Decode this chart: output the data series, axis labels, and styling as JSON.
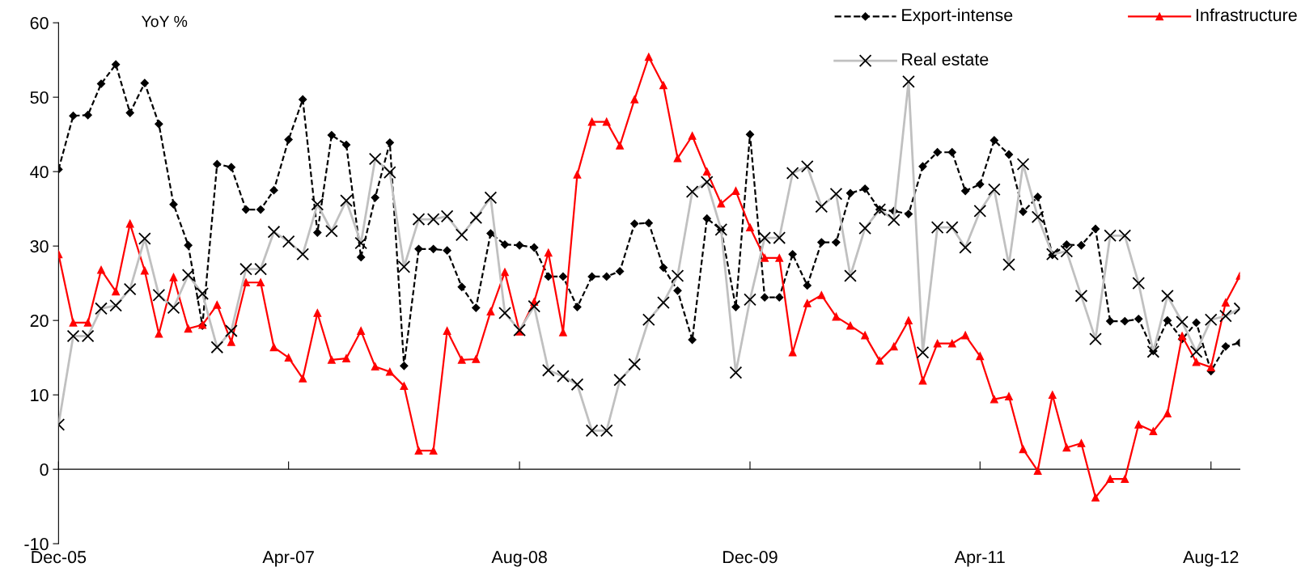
{
  "chart_data": {
    "type": "line",
    "ylabel": "YoY %",
    "x": [
      "2005-12",
      "2006-01",
      "2006-02",
      "2006-03",
      "2006-04",
      "2006-05",
      "2006-06",
      "2006-07",
      "2006-08",
      "2006-09",
      "2006-10",
      "2006-11",
      "2006-12",
      "2007-01",
      "2007-02",
      "2007-03",
      "2007-04",
      "2007-05",
      "2007-06",
      "2007-07",
      "2007-08",
      "2007-09",
      "2007-10",
      "2007-11",
      "2007-12",
      "2008-01",
      "2008-02",
      "2008-03",
      "2008-04",
      "2008-05",
      "2008-06",
      "2008-07",
      "2008-08",
      "2008-09",
      "2008-10",
      "2008-11",
      "2008-12",
      "2009-01",
      "2009-02",
      "2009-03",
      "2009-04",
      "2009-05",
      "2009-06",
      "2009-07",
      "2009-08",
      "2009-09",
      "2009-10",
      "2009-11",
      "2009-12",
      "2010-01",
      "2010-02",
      "2010-03",
      "2010-04",
      "2010-05",
      "2010-06",
      "2010-07",
      "2010-08",
      "2010-09",
      "2010-10",
      "2010-11",
      "2010-12",
      "2011-01",
      "2011-02",
      "2011-03",
      "2011-04",
      "2011-05",
      "2011-06",
      "2011-07",
      "2011-08",
      "2011-09",
      "2011-10",
      "2011-11",
      "2011-12",
      "2012-01",
      "2012-02",
      "2012-03",
      "2012-04",
      "2012-05",
      "2012-06",
      "2012-07",
      "2012-08",
      "2012-09",
      "2012-10"
    ],
    "series": [
      {
        "name": "Export-intense",
        "color": "#000000",
        "marker": "diamond",
        "line_style": "dashed",
        "values": [
          40.3,
          47.5,
          47.6,
          51.8,
          54.4,
          47.9,
          51.9,
          46.4,
          35.6,
          30.1,
          19.3,
          41.0,
          40.6,
          34.9,
          34.9,
          37.5,
          44.3,
          49.7,
          31.8,
          44.9,
          43.6,
          28.5,
          36.5,
          43.9,
          13.9,
          29.6,
          29.6,
          29.4,
          24.5,
          21.7,
          31.7,
          30.2,
          30.1,
          29.8,
          25.9,
          25.9,
          21.8,
          25.9,
          25.9,
          26.6,
          33.0,
          33.1,
          27.1,
          24.0,
          17.4,
          33.7,
          32.2,
          21.8,
          45.0,
          23.1,
          23.1,
          28.9,
          24.7,
          30.5,
          30.5,
          37.1,
          37.7,
          34.9,
          34.7,
          34.3,
          40.7,
          42.6,
          42.6,
          37.4,
          38.3,
          44.2,
          42.3,
          34.6,
          36.6,
          28.8,
          30.2,
          30.1,
          32.3,
          19.9,
          19.9,
          20.2,
          15.9,
          20.0,
          17.5,
          19.7,
          13.2,
          16.5,
          17.0
        ]
      },
      {
        "name": "Infrastructure",
        "color": "#ff0000",
        "marker": "triangle",
        "line_style": "solid",
        "values": [
          28.9,
          19.7,
          19.7,
          26.8,
          23.9,
          33.0,
          26.7,
          18.2,
          25.8,
          18.9,
          19.4,
          22.1,
          17.1,
          25.1,
          25.1,
          16.4,
          15.0,
          12.2,
          21.0,
          14.7,
          14.9,
          18.6,
          13.8,
          13.1,
          11.2,
          2.5,
          2.5,
          18.6,
          14.7,
          14.8,
          21.2,
          26.5,
          18.5,
          22.5,
          29.1,
          18.4,
          39.6,
          46.7,
          46.7,
          43.5,
          49.7,
          55.4,
          51.6,
          41.8,
          44.8,
          40.0,
          35.7,
          37.4,
          32.5,
          28.4,
          28.4,
          15.7,
          22.3,
          23.4,
          20.5,
          19.3,
          18.0,
          14.6,
          16.5,
          20.0,
          11.9,
          16.9,
          16.9,
          18.0,
          15.2,
          9.4,
          9.8,
          2.7,
          -0.2,
          10.0,
          2.9,
          3.5,
          -3.8,
          -1.3,
          -1.3,
          6.0,
          5.1,
          7.5,
          17.9,
          14.4,
          13.7,
          22.4,
          26.0
        ]
      },
      {
        "name": "Real estate",
        "color": "#c0c0c0",
        "marker": "cross",
        "line_style": "solid",
        "values": [
          6.0,
          17.9,
          17.9,
          21.6,
          22.0,
          24.2,
          31.0,
          23.4,
          21.7,
          26.1,
          23.6,
          16.4,
          18.6,
          26.9,
          26.9,
          31.9,
          30.6,
          28.9,
          35.6,
          32.0,
          36.1,
          30.4,
          41.7,
          39.9,
          27.2,
          33.6,
          33.6,
          34.0,
          31.5,
          33.8,
          36.5,
          21.0,
          18.7,
          21.9,
          13.3,
          12.5,
          11.4,
          5.2,
          5.2,
          12.0,
          14.1,
          20.1,
          22.4,
          26.0,
          37.3,
          38.6,
          32.2,
          13.0,
          22.8,
          31.1,
          31.1,
          39.8,
          40.7,
          35.3,
          37.0,
          26.0,
          32.4,
          34.9,
          33.5,
          52.1,
          15.7,
          32.5,
          32.5,
          29.8,
          34.7,
          37.6,
          27.5,
          41.0,
          33.9,
          28.9,
          29.3,
          23.3,
          17.5,
          31.4,
          31.4,
          25.0,
          15.8,
          23.3,
          19.8,
          15.8,
          20.1,
          20.6,
          21.6
        ]
      }
    ],
    "xlim": [
      "2005-12",
      "2012-10"
    ],
    "xticks": [
      {
        "value": "2005-12",
        "label": "Dec-05"
      },
      {
        "value": "2007-04",
        "label": "Apr-07"
      },
      {
        "value": "2008-08",
        "label": "Aug-08"
      },
      {
        "value": "2009-12",
        "label": "Dec-09"
      },
      {
        "value": "2011-04",
        "label": "Apr-11"
      },
      {
        "value": "2012-08",
        "label": "Aug-12"
      }
    ],
    "ylim": [
      -10,
      60
    ],
    "yticks": [
      -10,
      0,
      10,
      20,
      30,
      40,
      50,
      60
    ],
    "legend": "top right"
  }
}
